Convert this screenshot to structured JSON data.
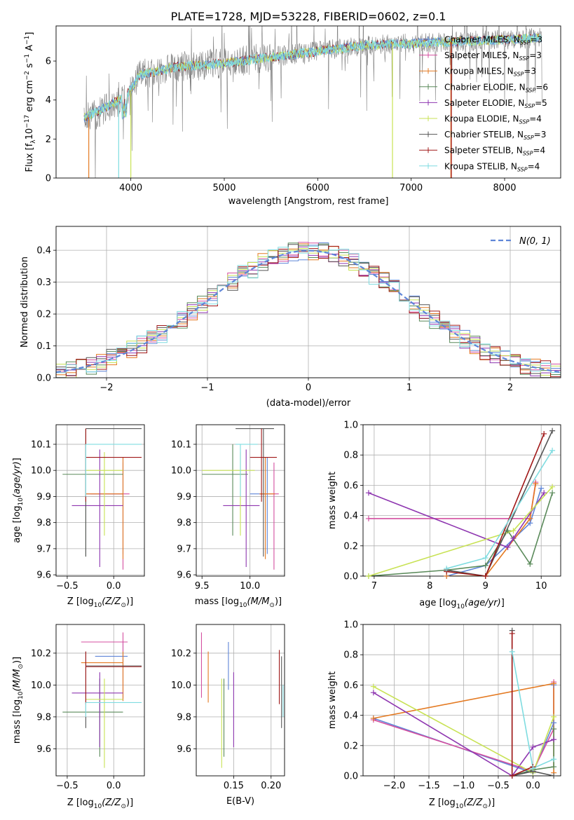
{
  "title": "PLATE=1728, MJD=53228, FIBERID=0602, z=0.1",
  "models": [
    {
      "label": "Chabrier MILES, N",
      "n": "=3",
      "color": "#5f86d8"
    },
    {
      "label": "Salpeter MILES, N",
      "n": "=3",
      "color": "#d44fa0"
    },
    {
      "label": "Kroupa MILES, N",
      "n": "=3",
      "color": "#e47a22"
    },
    {
      "label": "Chabrier ELODIE, N",
      "n": "=6",
      "color": "#5a8a5a"
    },
    {
      "label": "Salpeter ELODIE, N",
      "n": "=5",
      "color": "#8e36b0"
    },
    {
      "label": "Kroupa ELODIE, N",
      "n": "=4",
      "color": "#c8e254"
    },
    {
      "label": "Chabrier STELIB, N",
      "n": "=3",
      "color": "#555555"
    },
    {
      "label": "Salpeter STELIB, N",
      "n": "=4",
      "color": "#a01818"
    },
    {
      "label": "Kroupa STELIB, N",
      "n": "=4",
      "color": "#7fdce0"
    }
  ],
  "legend_sub": "SSP",
  "chart_data": [
    {
      "id": "spectrum",
      "type": "line",
      "xlabel": "wavelength [Angstrom, rest frame]",
      "xlim": [
        3200,
        8600
      ],
      "ylim": [
        0,
        7.8
      ],
      "xticks": [
        4000,
        5000,
        6000,
        7000,
        8000
      ],
      "yticks": [
        0,
        2,
        4,
        6
      ],
      "continuum": {
        "x": [
          3500,
          3800,
          3950,
          4100,
          4500,
          5000,
          5500,
          6000,
          6500,
          7000,
          7500,
          8000,
          8400
        ],
        "y": [
          3.0,
          3.7,
          4.1,
          5.3,
          5.7,
          5.9,
          6.2,
          6.5,
          6.8,
          6.9,
          7.0,
          7.1,
          7.2
        ]
      },
      "legend": "top-right"
    },
    {
      "id": "residuals",
      "type": "histogram",
      "xlabel": "(data-model)/error",
      "ylabel": "Normed distribution",
      "xlim": [
        -2.5,
        2.5
      ],
      "ylim": [
        0,
        0.475
      ],
      "xticks": [
        -2,
        -1,
        0,
        1,
        2
      ],
      "yticks": [
        0.0,
        0.1,
        0.2,
        0.3,
        0.4
      ],
      "gaussian_label": "N(0, 1)",
      "legend": "top-right"
    },
    {
      "id": "age_vs_Z",
      "type": "errorbar",
      "xlabel_pre": "Z [log",
      "xlabel_sub": "10",
      "xlabel_post": "(Z/Z",
      "xlabel_end": ")]",
      "ylabel": "age  [log10(age/yr)]",
      "xlim": [
        -0.62,
        0.33
      ],
      "ylim": [
        9.595,
        10.175
      ],
      "xticks": [
        -0.5,
        0.0
      ],
      "yticks": [
        9.6,
        9.7,
        9.8,
        9.9,
        10.0,
        10.1
      ],
      "points": [
        {
          "x": 0.1,
          "x0": -0.25,
          "x1": 0.1,
          "y": 9.91,
          "y0": 9.68,
          "y1": 10.05
        },
        {
          "x": 0.1,
          "x0": -0.3,
          "x1": 0.17,
          "y": 9.91,
          "y0": 9.62,
          "y1": 10.03
        },
        {
          "x": 0.1,
          "x0": -0.3,
          "x1": 0.1,
          "y": 9.91,
          "y0": 9.66,
          "y1": 10.05
        },
        {
          "x": -0.3,
          "x0": -0.55,
          "x1": 0.1,
          "y": 9.985,
          "y0": 9.67,
          "y1": 10.16
        },
        {
          "x": -0.15,
          "x0": -0.45,
          "x1": 0.1,
          "y": 9.865,
          "y0": 9.63,
          "y1": 10.08
        },
        {
          "x": -0.1,
          "x0": -0.3,
          "x1": 0.1,
          "y": 10.0,
          "y0": 9.75,
          "y1": 10.07
        },
        {
          "x": -0.3,
          "x0": -0.3,
          "x1": 0.3,
          "y": 10.16,
          "y0": 9.67,
          "y1": 10.16
        },
        {
          "x": -0.3,
          "x0": -0.3,
          "x1": 0.3,
          "y": 10.05,
          "y0": 9.88,
          "y1": 10.16
        },
        {
          "x": -0.3,
          "x0": -0.3,
          "x1": 0.3,
          "y": 10.1,
          "y0": 9.9,
          "y1": 10.1
        }
      ]
    },
    {
      "id": "age_vs_mass",
      "type": "errorbar",
      "xlabel_pre": "mass [log",
      "xlabel_sub": "10",
      "xlabel_post": "(M/M",
      "xlabel_end": ")]",
      "xlim": [
        9.44,
        10.36
      ],
      "ylim": [
        9.595,
        10.175
      ],
      "xticks": [
        9.5,
        10.0
      ],
      "yticks": [
        9.6,
        9.7,
        9.8,
        9.9,
        10.0,
        10.1
      ],
      "points": [
        {
          "x": 10.18,
          "x0": 10.0,
          "x1": 10.18,
          "y": 9.91,
          "y0": 9.68,
          "y1": 10.05
        },
        {
          "x": 10.25,
          "x0": 10.1,
          "x1": 10.3,
          "y": 9.91,
          "y0": 9.62,
          "y1": 10.03
        },
        {
          "x": 10.16,
          "x0": 10.1,
          "x1": 10.26,
          "y": 9.91,
          "y0": 9.66,
          "y1": 10.05
        },
        {
          "x": 9.82,
          "x0": 9.5,
          "x1": 9.98,
          "y": 9.985,
          "y0": 9.75,
          "y1": 10.1
        },
        {
          "x": 9.96,
          "x0": 9.72,
          "x1": 10.1,
          "y": 9.865,
          "y0": 9.63,
          "y1": 10.08
        },
        {
          "x": 9.9,
          "x0": 9.5,
          "x1": 10.05,
          "y": 10.0,
          "y0": 9.75,
          "y1": 10.07
        },
        {
          "x": 10.14,
          "x0": 9.85,
          "x1": 10.25,
          "y": 10.16,
          "y0": 9.67,
          "y1": 10.16
        },
        {
          "x": 10.12,
          "x0": 10.0,
          "x1": 10.28,
          "y": 10.05,
          "y0": 9.88,
          "y1": 10.16
        },
        {
          "x": 9.9,
          "x0": 9.85,
          "x1": 10.08,
          "y": 10.1,
          "y0": 9.9,
          "y1": 10.1
        }
      ]
    },
    {
      "id": "mass_weight_vs_age",
      "type": "line",
      "xlabel": "age  [log10(age/yr)]",
      "ylabel": "mass weight",
      "xlim": [
        6.8,
        10.35
      ],
      "ylim": [
        0,
        1.0
      ],
      "xticks": [
        7,
        8,
        9,
        10
      ],
      "yticks": [
        0.0,
        0.2,
        0.4,
        0.6,
        0.8,
        1.0
      ],
      "series": [
        {
          "x": [
            8.3,
            9.0,
            9.8,
            10.0
          ],
          "y": [
            0.0,
            0.07,
            0.35,
            0.58
          ]
        },
        {
          "x": [
            6.9,
            9.8,
            9.9
          ],
          "y": [
            0.38,
            0.38,
            0.62
          ]
        },
        {
          "x": [
            8.3,
            9.0,
            9.8,
            9.9
          ],
          "y": [
            0.0,
            0.0,
            0.38,
            0.61
          ]
        },
        {
          "x": [
            6.9,
            8.3,
            9.0,
            9.4,
            9.8,
            10.2
          ],
          "y": [
            0.0,
            0.04,
            0.07,
            0.3,
            0.08,
            0.55
          ]
        },
        {
          "x": [
            6.9,
            9.4,
            9.5,
            10.05
          ],
          "y": [
            0.55,
            0.19,
            0.25,
            0.55
          ]
        },
        {
          "x": [
            6.9,
            9.5,
            10.2
          ],
          "y": [
            0.0,
            0.3,
            0.59
          ]
        },
        {
          "x": [
            8.3,
            9.0,
            10.2
          ],
          "y": [
            0.04,
            0.0,
            0.96
          ]
        },
        {
          "x": [
            8.3,
            9.0,
            10.05
          ],
          "y": [
            0.03,
            0.0,
            0.94
          ]
        },
        {
          "x": [
            8.3,
            9.0,
            10.2
          ],
          "y": [
            0.05,
            0.12,
            0.83
          ]
        }
      ]
    },
    {
      "id": "mass_vs_Z",
      "type": "errorbar",
      "xlabel_pre": "Z [log",
      "xlabel_sub": "10",
      "xlabel_post": "(Z/Z",
      "xlabel_end": ")]",
      "ylabel": "mass [log10(M/M)]",
      "xlim": [
        -0.62,
        0.33
      ],
      "ylim": [
        9.43,
        10.38
      ],
      "xticks": [
        -0.5,
        0.0
      ],
      "yticks": [
        9.6,
        9.8,
        10.0,
        10.2
      ],
      "points": [
        {
          "x": 0.1,
          "x0": -0.2,
          "x1": 0.15,
          "y": 10.18,
          "y0": 9.9,
          "y1": 10.27
        },
        {
          "x": 0.1,
          "x0": -0.35,
          "x1": 0.15,
          "y": 10.27,
          "y0": 9.92,
          "y1": 10.33
        },
        {
          "x": 0.1,
          "x0": -0.35,
          "x1": 0.1,
          "y": 10.14,
          "y0": 9.9,
          "y1": 10.21
        },
        {
          "x": -0.15,
          "x0": -0.55,
          "x1": 0.1,
          "y": 9.83,
          "y0": 9.55,
          "y1": 10.04
        },
        {
          "x": -0.15,
          "x0": -0.45,
          "x1": 0.1,
          "y": 9.95,
          "y0": 9.61,
          "y1": 10.08
        },
        {
          "x": -0.1,
          "x0": -0.3,
          "x1": 0.1,
          "y": 9.91,
          "y0": 9.48,
          "y1": 10.04
        },
        {
          "x": -0.3,
          "x0": -0.3,
          "x1": 0.3,
          "y": 10.12,
          "y0": 9.73,
          "y1": 10.21
        },
        {
          "x": -0.3,
          "x0": -0.3,
          "x1": 0.3,
          "y": 10.115,
          "y0": 9.88,
          "y1": 10.21
        },
        {
          "x": -0.3,
          "x0": -0.3,
          "x1": 0.3,
          "y": 9.89,
          "y0": 9.8,
          "y1": 9.89
        }
      ]
    },
    {
      "id": "mass_vs_ebv",
      "type": "errorbar",
      "xlabel": "E(B-V)",
      "xlim": [
        0.1,
        0.218
      ],
      "ylim": [
        9.43,
        10.38
      ],
      "xticks": [
        0.15,
        0.2
      ],
      "yticks": [
        9.6,
        9.8,
        10.0,
        10.2
      ],
      "points": [
        {
          "x": 0.143,
          "y": 10.12,
          "y0": 9.97,
          "y1": 10.27
        },
        {
          "x": 0.107,
          "y": 10.12,
          "y0": 9.92,
          "y1": 10.33
        },
        {
          "x": 0.116,
          "y": 10.05,
          "y0": 9.89,
          "y1": 10.21
        },
        {
          "x": 0.137,
          "y": 9.8,
          "y0": 9.55,
          "y1": 10.04
        },
        {
          "x": 0.15,
          "y": 9.85,
          "y0": 9.61,
          "y1": 10.08
        },
        {
          "x": 0.134,
          "y": 9.76,
          "y0": 9.48,
          "y1": 10.04
        },
        {
          "x": 0.214,
          "y": 9.95,
          "y0": 9.73,
          "y1": 10.18
        },
        {
          "x": 0.211,
          "y": 10.05,
          "y0": 9.88,
          "y1": 10.22
        },
        {
          "x": 0.216,
          "y": 9.9,
          "y0": 9.8,
          "y1": 10.0
        }
      ]
    },
    {
      "id": "mass_weight_vs_Z",
      "type": "line",
      "xlabel_pre": "Z [log",
      "xlabel_sub": "10",
      "xlabel_post": "(Z/Z",
      "xlabel_end": ")]",
      "ylabel": "mass weight",
      "xlim": [
        -2.45,
        0.4
      ],
      "ylim": [
        0,
        1.0
      ],
      "xticks": [
        -2.0,
        -1.5,
        -1.0,
        -0.5,
        0.0
      ],
      "yticks": [
        0.0,
        0.2,
        0.4,
        0.6,
        0.8,
        1.0
      ],
      "series": [
        {
          "x": [
            -2.3,
            0.0,
            0.3,
            0.3
          ],
          "y": [
            0.38,
            0.02,
            0.35,
            0.6
          ]
        },
        {
          "x": [
            -2.3,
            0.0,
            0.3,
            0.3
          ],
          "y": [
            0.37,
            0.03,
            0.31,
            0.62
          ]
        },
        {
          "x": [
            -2.3,
            0.3,
            0.3
          ],
          "y": [
            0.38,
            0.61,
            0.02
          ]
        },
        {
          "x": [
            -0.3,
            0.0,
            0.3,
            0.3
          ],
          "y": [
            0.0,
            0.04,
            0.06,
            0.31
          ]
        },
        {
          "x": [
            -2.3,
            -0.3,
            0.0,
            0.3
          ],
          "y": [
            0.55,
            0.0,
            0.19,
            0.24
          ]
        },
        {
          "x": [
            -2.3,
            0.0,
            0.3
          ],
          "y": [
            0.59,
            0.02,
            0.39
          ]
        },
        {
          "x": [
            -0.3,
            -0.3,
            0.0,
            0.3
          ],
          "y": [
            0.96,
            0.0,
            0.03,
            0.0
          ]
        },
        {
          "x": [
            -0.3,
            -0.3,
            0.0
          ],
          "y": [
            0.94,
            0.0,
            0.06
          ]
        },
        {
          "x": [
            -0.3,
            0.0,
            0.3
          ],
          "y": [
            0.82,
            0.05,
            0.11
          ]
        }
      ]
    }
  ]
}
